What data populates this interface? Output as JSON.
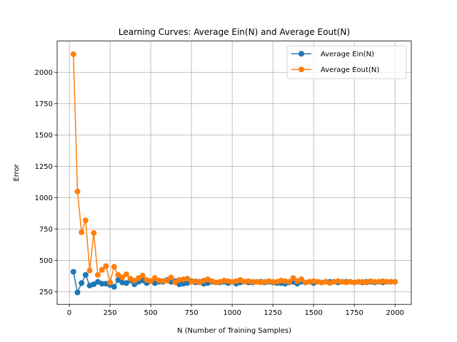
{
  "chart_data": {
    "type": "line",
    "title": "Learning Curves: Average Ein(N) and Average Eout(N)",
    "xlabel": "N (Number of Training Samples)",
    "ylabel": "Error",
    "xlim": [
      -75,
      2100
    ],
    "ylim": [
      150,
      2250
    ],
    "xticks": [
      0,
      250,
      500,
      750,
      1000,
      1250,
      1500,
      1750,
      2000
    ],
    "yticks": [
      250,
      500,
      750,
      1000,
      1250,
      1500,
      1750,
      2000
    ],
    "grid": true,
    "legend_position": "top-right",
    "x": [
      25,
      50,
      75,
      100,
      125,
      150,
      175,
      200,
      225,
      250,
      275,
      300,
      325,
      350,
      375,
      400,
      425,
      450,
      475,
      500,
      525,
      550,
      575,
      600,
      625,
      650,
      675,
      700,
      725,
      750,
      775,
      800,
      825,
      850,
      875,
      900,
      925,
      950,
      975,
      1000,
      1025,
      1050,
      1075,
      1100,
      1125,
      1150,
      1175,
      1200,
      1225,
      1250,
      1275,
      1300,
      1325,
      1350,
      1375,
      1400,
      1425,
      1450,
      1475,
      1500,
      1525,
      1550,
      1575,
      1600,
      1625,
      1650,
      1675,
      1700,
      1725,
      1750,
      1775,
      1800,
      1825,
      1850,
      1875,
      1900,
      1925,
      1950,
      1975,
      2000
    ],
    "series": [
      {
        "name": "Average Ein(N)",
        "color": "#1f77b4",
        "values": [
          410,
          245,
          320,
          385,
          300,
          310,
          330,
          315,
          315,
          305,
          290,
          345,
          325,
          320,
          340,
          310,
          330,
          340,
          320,
          335,
          320,
          330,
          330,
          345,
          330,
          335,
          310,
          315,
          320,
          335,
          325,
          330,
          315,
          320,
          330,
          325,
          325,
          330,
          320,
          330,
          315,
          325,
          330,
          325,
          325,
          330,
          330,
          325,
          330,
          325,
          320,
          320,
          315,
          325,
          330,
          315,
          330,
          325,
          330,
          320,
          330,
          325,
          330,
          330,
          330,
          325,
          330,
          330,
          330,
          325,
          330,
          325,
          330,
          330,
          325,
          330,
          325,
          330,
          330,
          330
        ]
      },
      {
        "name": "Average Eout(N)",
        "color": "#ff7f0e",
        "values": [
          2145,
          1050,
          725,
          820,
          420,
          720,
          385,
          425,
          455,
          325,
          450,
          385,
          365,
          390,
          355,
          340,
          360,
          380,
          345,
          335,
          360,
          340,
          335,
          340,
          365,
          325,
          345,
          350,
          355,
          330,
          335,
          325,
          340,
          350,
          335,
          325,
          330,
          340,
          335,
          330,
          335,
          345,
          330,
          335,
          330,
          330,
          325,
          330,
          335,
          330,
          330,
          340,
          335,
          330,
          360,
          335,
          350,
          325,
          330,
          335,
          330,
          325,
          330,
          320,
          330,
          335,
          330,
          325,
          330,
          325,
          330,
          330,
          325,
          335,
          330,
          330,
          335,
          330,
          330,
          330
        ]
      }
    ]
  }
}
